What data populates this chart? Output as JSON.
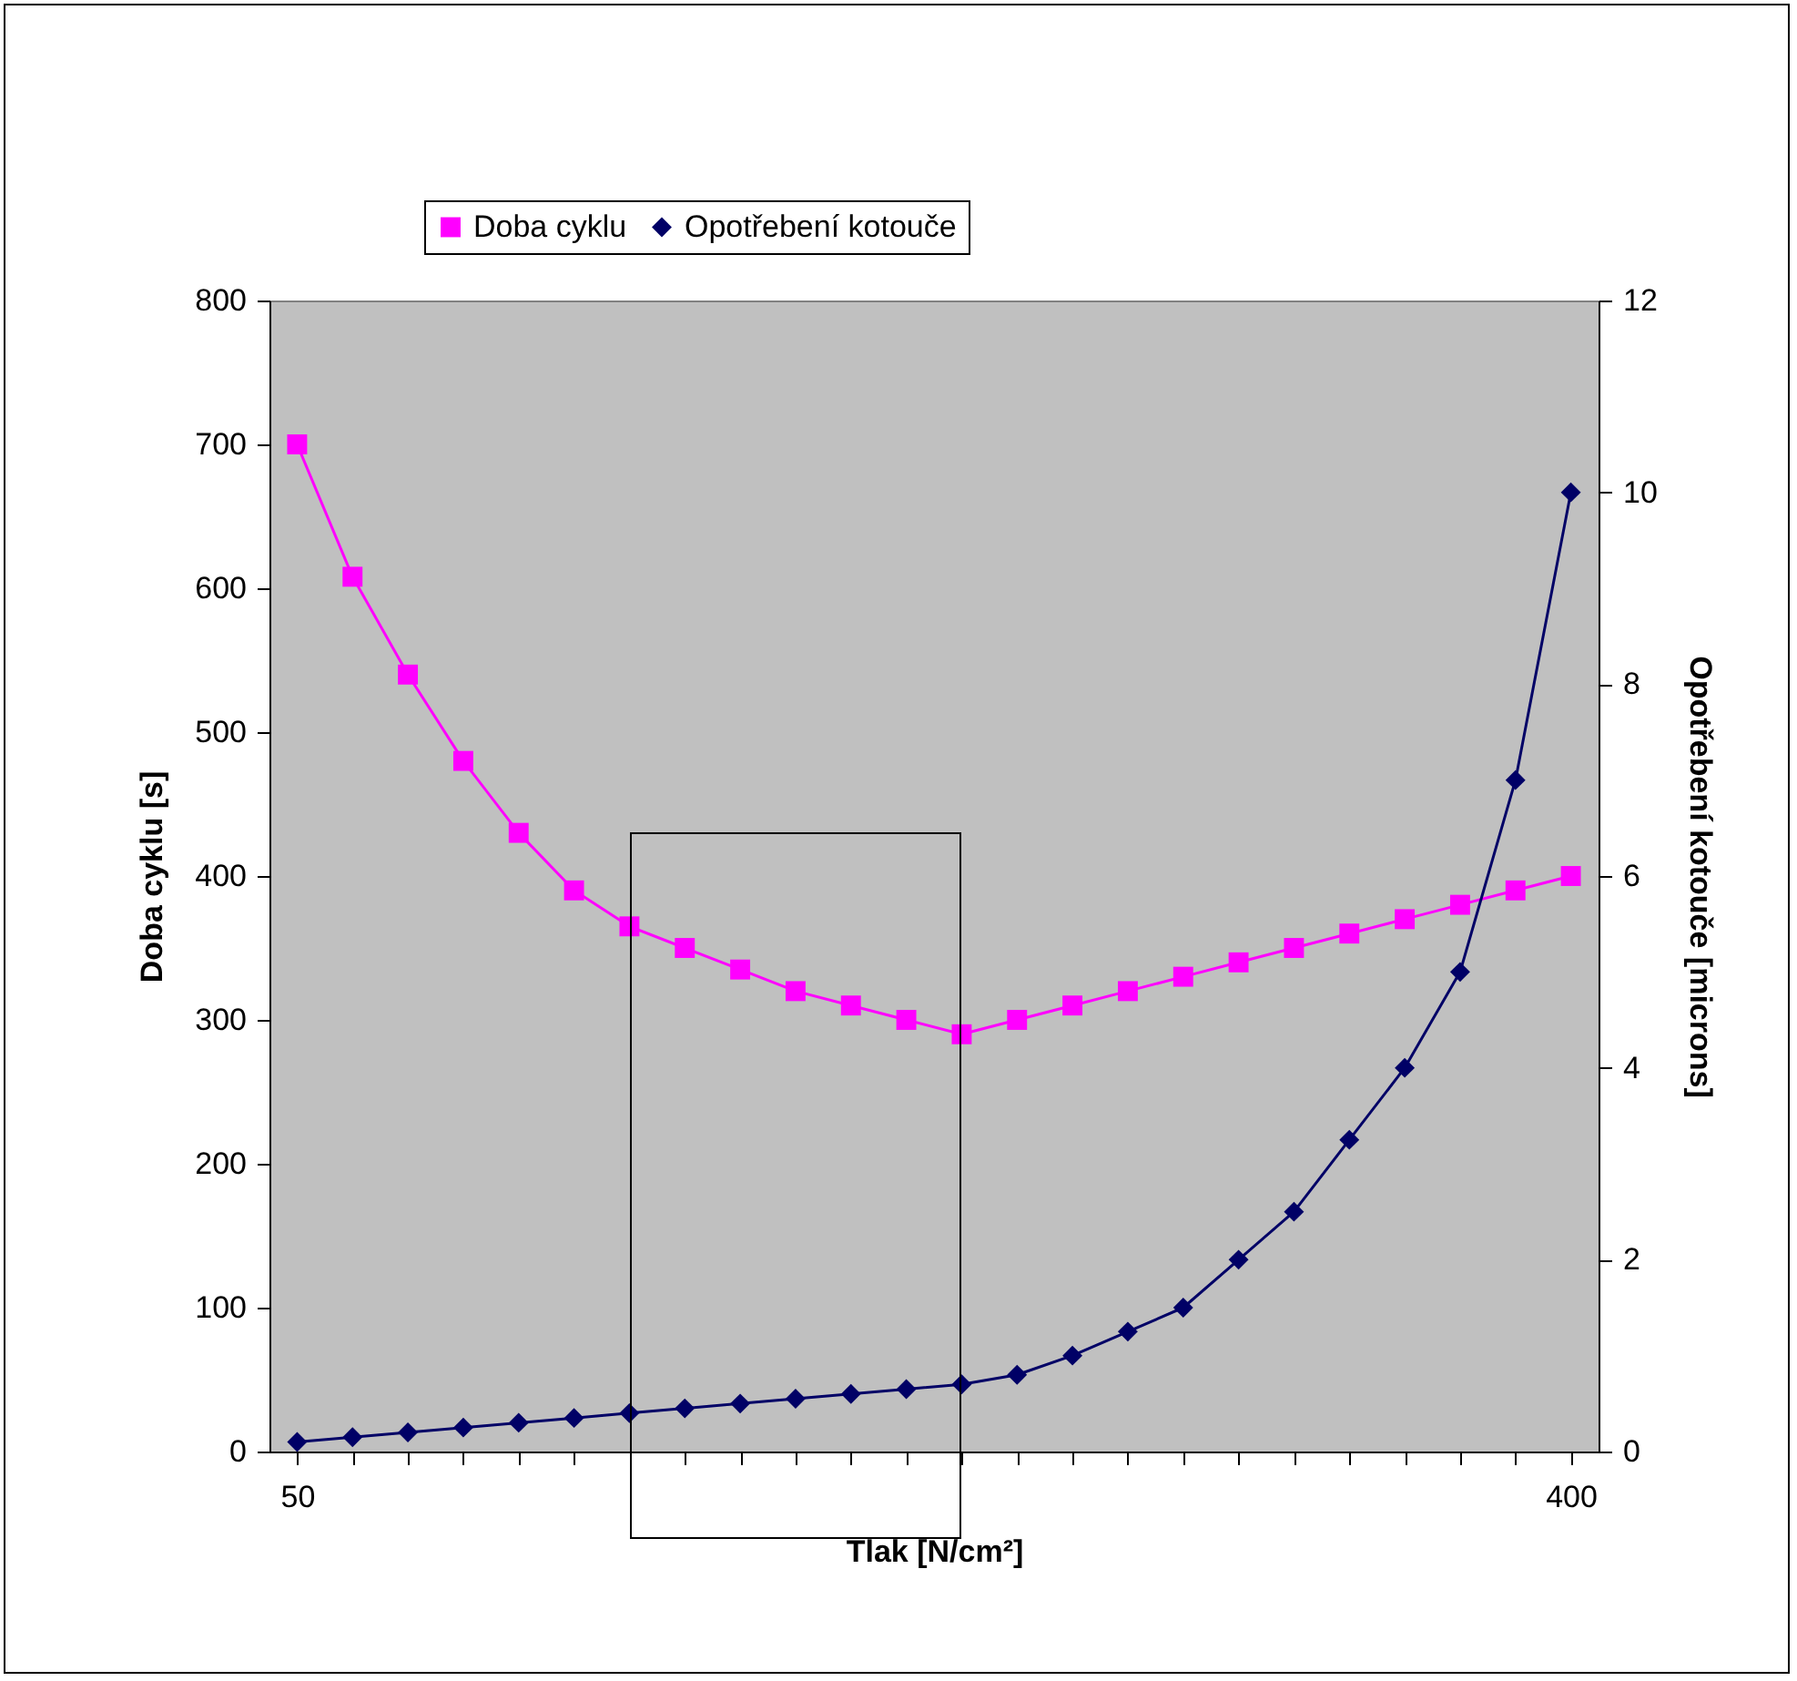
{
  "chart_data": {
    "type": "line",
    "xlabel": "Tlak [N/cm²]",
    "ylabel": "Doba cyklu [s]",
    "y2label": "Opotřebení kotouče [microns]",
    "categories": [
      "50",
      null,
      null,
      null,
      null,
      null,
      null,
      null,
      null,
      null,
      null,
      null,
      null,
      null,
      null,
      null,
      null,
      null,
      null,
      null,
      null,
      null,
      null,
      "400"
    ],
    "series": [
      {
        "name": "Doba cyklu",
        "color": "#ff00ff",
        "marker": "square",
        "values": [
          700,
          608,
          540,
          480,
          430,
          390,
          365,
          350,
          335,
          320,
          310,
          300,
          290,
          300,
          310,
          320,
          330,
          340,
          350,
          360,
          370,
          380,
          390,
          400
        ]
      },
      {
        "name": "Opotřebení kotouče",
        "color": "#000066",
        "marker": "diamond",
        "axis": "y2",
        "values": [
          0.1,
          0.15,
          0.2,
          0.25,
          0.3,
          0.35,
          0.4,
          0.45,
          0.5,
          0.55,
          0.6,
          0.65,
          0.7,
          0.8,
          1.0,
          1.25,
          1.5,
          2.0,
          2.5,
          3.25,
          4,
          5,
          7,
          10
        ]
      }
    ],
    "ylim": [
      0,
      800
    ],
    "yticks": [
      0,
      100,
      200,
      300,
      400,
      500,
      600,
      700,
      800
    ],
    "y2lim": [
      0,
      12
    ],
    "y2ticks": [
      0,
      2,
      4,
      6,
      8,
      10,
      12
    ],
    "legend": "top",
    "grid": false,
    "line_style": "solid"
  }
}
